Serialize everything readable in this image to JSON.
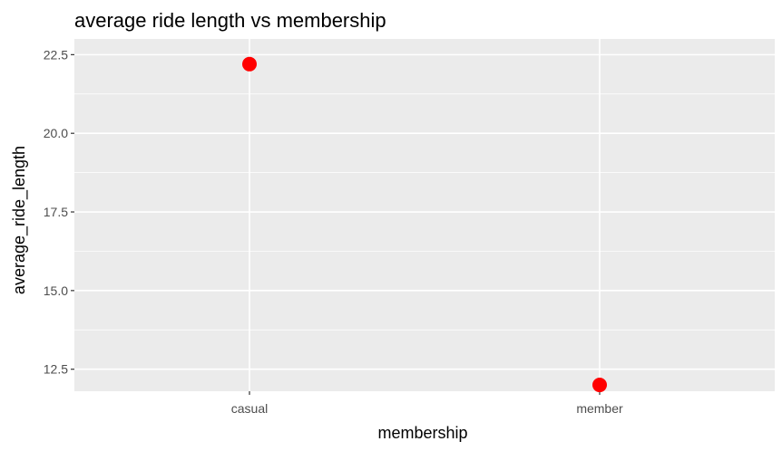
{
  "chart_data": {
    "type": "scatter",
    "title": "average ride length vs membership",
    "xlabel": "membership",
    "ylabel": "average_ride_length",
    "categories": [
      "casual",
      "member"
    ],
    "values": [
      22.2,
      12.0
    ],
    "ylim": [
      11.8,
      23.0
    ],
    "yticks": [
      12.5,
      15.0,
      17.5,
      20.0,
      22.5
    ],
    "ytick_labels": [
      "12.5",
      "15.0",
      "17.5",
      "20.0",
      "22.5"
    ],
    "grid": true,
    "panel_background": "#ebebeb",
    "grid_color": "#ffffff",
    "point_color": "#ff0000"
  }
}
